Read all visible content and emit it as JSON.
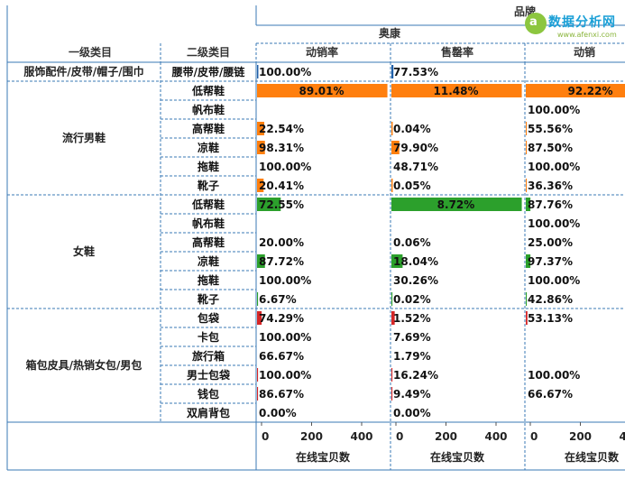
{
  "chart_data": {
    "type": "bar",
    "header": {
      "col1": "一级类目",
      "col2": "二级类目",
      "brand_label": "品牌",
      "brand": "奥康",
      "measures": [
        "动销率",
        "售罄率",
        "动销"
      ]
    },
    "groups": [
      {
        "name": "服饰配件/皮带/帽子/围巾",
        "rows": 1
      },
      {
        "name": "流行男鞋",
        "rows": 6
      },
      {
        "name": "女鞋",
        "rows": 6
      },
      {
        "name": "箱包皮具/热销女包/男包",
        "rows": 6
      }
    ],
    "categories": [
      "腰带/皮带/腰链",
      "低帮鞋",
      "帆布鞋",
      "高帮鞋",
      "凉鞋",
      "拖鞋",
      "靴子",
      "低帮鞋",
      "帆布鞋",
      "高帮鞋",
      "凉鞋",
      "拖鞋",
      "靴子",
      "包袋",
      "卡包",
      "旅行箱",
      "男士包袋",
      "钱包",
      "双肩背包"
    ],
    "series": [
      {
        "name": "动销率",
        "labels": [
          "100.00%",
          "89.01%",
          "",
          "22.54%",
          "98.31%",
          "100.00%",
          "20.41%",
          "72.55%",
          "",
          "20.00%",
          "87.72%",
          "100.00%",
          "6.67%",
          "74.29%",
          "100.00%",
          "66.67%",
          "100.00%",
          "86.67%",
          "0.00%"
        ],
        "bar_values": [
          4,
          400,
          0,
          22,
          24,
          0,
          20,
          72,
          0,
          0,
          24,
          0,
          3,
          14,
          0,
          0,
          3,
          3,
          0
        ]
      },
      {
        "name": "售罄率",
        "labels": [
          "77.53%",
          "11.48%",
          "",
          "0.04%",
          "79.90%",
          "48.71%",
          "0.05%",
          "8.72%",
          "",
          "0.06%",
          "18.04%",
          "30.26%",
          "0.02%",
          "1.52%",
          "7.69%",
          "1.79%",
          "16.24%",
          "9.49%",
          "0.00%"
        ],
        "bar_values": [
          6,
          400,
          0,
          4,
          24,
          0,
          4,
          400,
          0,
          0,
          34,
          0,
          3,
          10,
          0,
          0,
          3,
          3,
          0
        ]
      },
      {
        "name": "动销",
        "labels": [
          "",
          "92.22%",
          "100.00%",
          "55.56%",
          "87.50%",
          "100.00%",
          "36.36%",
          "87.76%",
          "100.00%",
          "25.00%",
          "97.37%",
          "100.00%",
          "42.86%",
          "53.13%",
          "",
          "",
          "100.00%",
          "66.67%",
          ""
        ],
        "bar_values": [
          0,
          400,
          0,
          3,
          3,
          0,
          3,
          14,
          0,
          0,
          14,
          0,
          3,
          5,
          0,
          0,
          0,
          0,
          0
        ]
      }
    ],
    "bar_colors": {
      "group1": "#1f5fa8",
      "group2": "#ff7f0e",
      "group3": "#2ca02c",
      "group4": "#d62728"
    },
    "x_axis": {
      "ticks": [
        0,
        200,
        400
      ],
      "label": "在线宝贝数",
      "range": [
        0,
        400
      ]
    },
    "grid": "dashed"
  },
  "watermark": {
    "text": "数据分析网",
    "url": "www.afenxi.com",
    "logo_letter": "a"
  }
}
